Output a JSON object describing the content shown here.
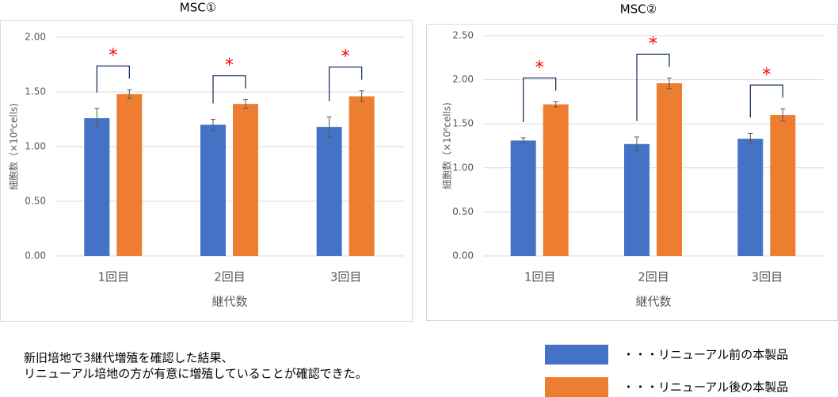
{
  "chart_data": [
    {
      "type": "bar",
      "title": "MSC①",
      "x_label": "継代数",
      "y_label": "細胞数（×10⁶cells)",
      "categories": [
        "1回目",
        "2回目",
        "3回目"
      ],
      "series": [
        {
          "name": "・・・リニューアル前の本製品",
          "color": "#4472c4",
          "values": [
            1.26,
            1.2,
            1.18
          ],
          "errors": [
            0.09,
            0.05,
            0.09
          ]
        },
        {
          "name": "・・・リニューアル後の本製品",
          "color": "#ed7d31",
          "values": [
            1.48,
            1.39,
            1.46
          ],
          "errors": [
            0.04,
            0.04,
            0.05
          ]
        }
      ],
      "significance": [
        "*",
        "*",
        "*"
      ],
      "ylim": [
        0,
        2
      ],
      "yticks": [
        {
          "value": 0,
          "label": "0.00"
        },
        {
          "value": 0.5,
          "label": "0.50"
        },
        {
          "value": 1,
          "label": "1.00"
        },
        {
          "value": 1.5,
          "label": "1.50"
        },
        {
          "value": 2,
          "label": "2.00"
        }
      ],
      "grid": true
    },
    {
      "type": "bar",
      "title": "MSC②",
      "x_label": "継代数",
      "y_label": "細胞数（×10⁶cells)",
      "categories": [
        "1回目",
        "2回目",
        "3回目"
      ],
      "series": [
        {
          "name": "・・・リニューアル前の本製品",
          "color": "#4472c4",
          "values": [
            1.31,
            1.27,
            1.33
          ],
          "errors": [
            0.03,
            0.08,
            0.06
          ]
        },
        {
          "name": "・・・リニューアル後の本製品",
          "color": "#ed7d31",
          "values": [
            1.72,
            1.96,
            1.6
          ],
          "errors": [
            0.03,
            0.06,
            0.07
          ]
        }
      ],
      "significance": [
        "*",
        "*",
        "*"
      ],
      "ylim": [
        0,
        2.5
      ],
      "yticks": [
        {
          "value": 0,
          "label": "0.00"
        },
        {
          "value": 0.5,
          "label": "0.50"
        },
        {
          "value": 1,
          "label": "1.00"
        },
        {
          "value": 1.5,
          "label": "1.50"
        },
        {
          "value": 2,
          "label": "2.00"
        },
        {
          "value": 2.5,
          "label": "2.50"
        }
      ],
      "grid": true
    }
  ],
  "caption": [
    "新旧培地で3継代増殖を確認した結果、",
    "リニューアル培地の方が有意に増殖していることが確認できた。"
  ]
}
